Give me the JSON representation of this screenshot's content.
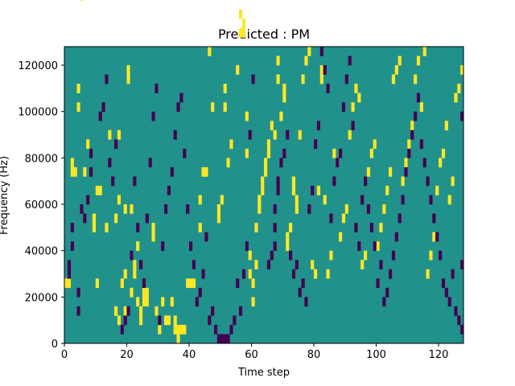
{
  "chart_data": {
    "type": "heatmap",
    "title": "Predicted : PM",
    "xlabel": "Time step",
    "ylabel": "Frequency (Hz)",
    "xlim": [
      0,
      128
    ],
    "ylim": [
      0,
      128000
    ],
    "xticks": [
      0,
      20,
      40,
      60,
      80,
      100,
      120
    ],
    "yticks": [
      0,
      20000,
      40000,
      60000,
      80000,
      100000,
      120000
    ],
    "grid": false,
    "legend": "none",
    "value_levels": [
      -1,
      0,
      1
    ],
    "colors": {
      "-1": "#440154",
      "0": "#21918c",
      "1": "#fde725"
    },
    "background_value": 0,
    "cell_size": {
      "time_step": 1,
      "frequency_hz": 4000
    },
    "high_cells": [
      [
        0,
        6
      ],
      [
        1,
        6
      ],
      [
        2,
        18
      ],
      [
        2,
        19
      ],
      [
        3,
        18
      ],
      [
        4,
        25
      ],
      [
        4,
        27
      ],
      [
        5,
        37
      ],
      [
        5,
        39
      ],
      [
        6,
        18
      ],
      [
        7,
        21
      ],
      [
        9,
        12
      ],
      [
        9,
        13
      ],
      [
        10,
        6
      ],
      [
        10,
        16
      ],
      [
        11,
        16
      ],
      [
        13,
        12
      ],
      [
        14,
        22
      ],
      [
        16,
        3
      ],
      [
        16,
        13
      ],
      [
        17,
        2
      ],
      [
        17,
        15
      ],
      [
        17,
        22
      ],
      [
        18,
        6
      ],
      [
        19,
        3
      ],
      [
        19,
        7
      ],
      [
        19,
        14
      ],
      [
        20,
        28
      ],
      [
        20,
        29
      ],
      [
        21,
        14
      ],
      [
        21,
        5
      ],
      [
        22,
        7
      ],
      [
        22,
        8
      ],
      [
        23,
        4
      ],
      [
        23,
        10
      ],
      [
        24,
        2
      ],
      [
        24,
        3
      ],
      [
        25,
        4
      ],
      [
        25,
        5
      ],
      [
        26,
        4
      ],
      [
        26,
        5
      ],
      [
        28,
        11
      ],
      [
        28,
        12
      ],
      [
        29,
        3
      ],
      [
        30,
        1
      ],
      [
        31,
        4
      ],
      [
        32,
        2
      ],
      [
        33,
        2
      ],
      [
        34,
        4
      ],
      [
        35,
        2
      ],
      [
        35,
        1
      ],
      [
        36,
        0
      ],
      [
        36,
        1
      ],
      [
        37,
        1
      ],
      [
        38,
        1
      ],
      [
        39,
        6
      ],
      [
        40,
        6
      ],
      [
        41,
        6
      ],
      [
        43,
        12
      ],
      [
        43,
        15
      ],
      [
        44,
        18
      ],
      [
        45,
        18
      ],
      [
        46,
        31
      ],
      [
        47,
        25
      ],
      [
        49,
        14
      ],
      [
        49,
        13
      ],
      [
        50,
        15
      ],
      [
        51,
        25
      ],
      [
        51,
        27
      ],
      [
        52,
        19
      ],
      [
        53,
        21
      ],
      [
        55,
        29
      ],
      [
        56,
        33
      ],
      [
        56,
        35
      ],
      [
        57,
        33
      ],
      [
        57,
        34
      ],
      [
        58,
        20
      ],
      [
        58,
        24
      ],
      [
        59,
        7
      ],
      [
        59,
        9
      ],
      [
        60,
        4
      ],
      [
        60,
        6
      ],
      [
        61,
        8
      ],
      [
        61,
        12
      ],
      [
        62,
        14
      ],
      [
        62,
        15
      ],
      [
        63,
        16
      ],
      [
        63,
        17
      ],
      [
        64,
        18
      ],
      [
        64,
        19
      ],
      [
        65,
        20
      ],
      [
        65,
        21
      ],
      [
        66,
        23
      ],
      [
        67,
        22
      ],
      [
        68,
        28
      ],
      [
        68,
        30
      ],
      [
        69,
        24
      ],
      [
        70,
        26
      ],
      [
        70,
        27
      ],
      [
        71,
        10
      ],
      [
        71,
        11
      ],
      [
        72,
        12
      ],
      [
        73,
        16
      ],
      [
        73,
        17
      ],
      [
        74,
        14
      ],
      [
        74,
        15
      ],
      [
        75,
        22
      ],
      [
        76,
        28
      ],
      [
        77,
        30
      ],
      [
        78,
        31
      ],
      [
        79,
        8
      ],
      [
        80,
        7
      ],
      [
        81,
        16
      ],
      [
        82,
        28
      ],
      [
        82,
        29
      ],
      [
        83,
        15
      ],
      [
        84,
        7
      ],
      [
        85,
        9
      ],
      [
        86,
        20
      ],
      [
        87,
        19
      ],
      [
        88,
        11
      ],
      [
        89,
        13
      ],
      [
        90,
        14
      ],
      [
        91,
        22
      ],
      [
        92,
        25
      ],
      [
        93,
        27
      ],
      [
        94,
        26
      ],
      [
        95,
        8
      ],
      [
        96,
        9
      ],
      [
        97,
        18
      ],
      [
        98,
        20
      ],
      [
        99,
        21
      ],
      [
        100,
        10
      ],
      [
        101,
        12
      ],
      [
        102,
        14
      ],
      [
        103,
        16
      ],
      [
        104,
        18
      ],
      [
        105,
        28
      ],
      [
        106,
        29
      ],
      [
        107,
        30
      ],
      [
        108,
        17
      ],
      [
        109,
        19
      ],
      [
        110,
        21
      ],
      [
        111,
        23
      ],
      [
        112,
        28
      ],
      [
        113,
        30
      ],
      [
        114,
        25
      ],
      [
        115,
        31
      ],
      [
        116,
        7
      ],
      [
        117,
        9
      ],
      [
        118,
        11
      ],
      [
        119,
        16
      ],
      [
        120,
        19
      ],
      [
        121,
        20
      ],
      [
        122,
        23
      ],
      [
        123,
        15
      ],
      [
        124,
        17
      ],
      [
        125,
        26
      ],
      [
        126,
        27
      ],
      [
        127,
        29
      ]
    ],
    "low_cells": [
      [
        1,
        7
      ],
      [
        1,
        8
      ],
      [
        2,
        10
      ],
      [
        2,
        12
      ],
      [
        4,
        3
      ],
      [
        4,
        5
      ],
      [
        5,
        14
      ],
      [
        6,
        13
      ],
      [
        7,
        15
      ],
      [
        8,
        18
      ],
      [
        8,
        20
      ],
      [
        11,
        24
      ],
      [
        12,
        25
      ],
      [
        13,
        28
      ],
      [
        14,
        19
      ],
      [
        15,
        17
      ],
      [
        16,
        21
      ],
      [
        18,
        1
      ],
      [
        19,
        2
      ],
      [
        20,
        3
      ],
      [
        21,
        9
      ],
      [
        22,
        17
      ],
      [
        23,
        12
      ],
      [
        24,
        8
      ],
      [
        25,
        6
      ],
      [
        26,
        13
      ],
      [
        27,
        19
      ],
      [
        28,
        24
      ],
      [
        29,
        27
      ],
      [
        30,
        2
      ],
      [
        31,
        10
      ],
      [
        32,
        14
      ],
      [
        33,
        16
      ],
      [
        34,
        18
      ],
      [
        35,
        22
      ],
      [
        36,
        25
      ],
      [
        37,
        26
      ],
      [
        38,
        20
      ],
      [
        39,
        14
      ],
      [
        40,
        10
      ],
      [
        41,
        8
      ],
      [
        42,
        4
      ],
      [
        43,
        5
      ],
      [
        44,
        7
      ],
      [
        45,
        11
      ],
      [
        46,
        2
      ],
      [
        47,
        3
      ],
      [
        48,
        1
      ],
      [
        49,
        0
      ],
      [
        50,
        0
      ],
      [
        51,
        0
      ],
      [
        52,
        0
      ],
      [
        53,
        1
      ],
      [
        54,
        2
      ],
      [
        55,
        6
      ],
      [
        56,
        3
      ],
      [
        57,
        7
      ],
      [
        58,
        10
      ],
      [
        59,
        22
      ],
      [
        60,
        28
      ],
      [
        65,
        8
      ],
      [
        66,
        9
      ],
      [
        67,
        10
      ],
      [
        67,
        12
      ],
      [
        67,
        14
      ],
      [
        68,
        16
      ],
      [
        68,
        17
      ],
      [
        69,
        19
      ],
      [
        70,
        20
      ],
      [
        71,
        22
      ],
      [
        72,
        9
      ],
      [
        73,
        7
      ],
      [
        74,
        8
      ],
      [
        75,
        5
      ],
      [
        76,
        6
      ],
      [
        77,
        4
      ],
      [
        78,
        14
      ],
      [
        79,
        16
      ],
      [
        80,
        21
      ],
      [
        81,
        23
      ],
      [
        82,
        31
      ],
      [
        83,
        29
      ],
      [
        84,
        27
      ],
      [
        85,
        13
      ],
      [
        86,
        17
      ],
      [
        87,
        19
      ],
      [
        88,
        20
      ],
      [
        89,
        25
      ],
      [
        90,
        28
      ],
      [
        91,
        30
      ],
      [
        92,
        23
      ],
      [
        93,
        12
      ],
      [
        94,
        10
      ],
      [
        95,
        15
      ],
      [
        96,
        17
      ],
      [
        97,
        14
      ],
      [
        98,
        12
      ],
      [
        99,
        10
      ],
      [
        100,
        6
      ],
      [
        101,
        8
      ],
      [
        102,
        4
      ],
      [
        103,
        5
      ],
      [
        104,
        7
      ],
      [
        105,
        9
      ],
      [
        106,
        11
      ],
      [
        107,
        13
      ],
      [
        108,
        15
      ],
      [
        109,
        18
      ],
      [
        110,
        20
      ],
      [
        111,
        22
      ],
      [
        112,
        24
      ],
      [
        113,
        26
      ],
      [
        114,
        21
      ],
      [
        115,
        19
      ],
      [
        116,
        17
      ],
      [
        117,
        15
      ],
      [
        118,
        13
      ],
      [
        119,
        11
      ],
      [
        120,
        9
      ],
      [
        121,
        6
      ],
      [
        122,
        5
      ],
      [
        123,
        4
      ],
      [
        124,
        7
      ],
      [
        125,
        3
      ],
      [
        126,
        2
      ],
      [
        127,
        1
      ],
      [
        127,
        8
      ],
      [
        127,
        24
      ]
    ]
  }
}
